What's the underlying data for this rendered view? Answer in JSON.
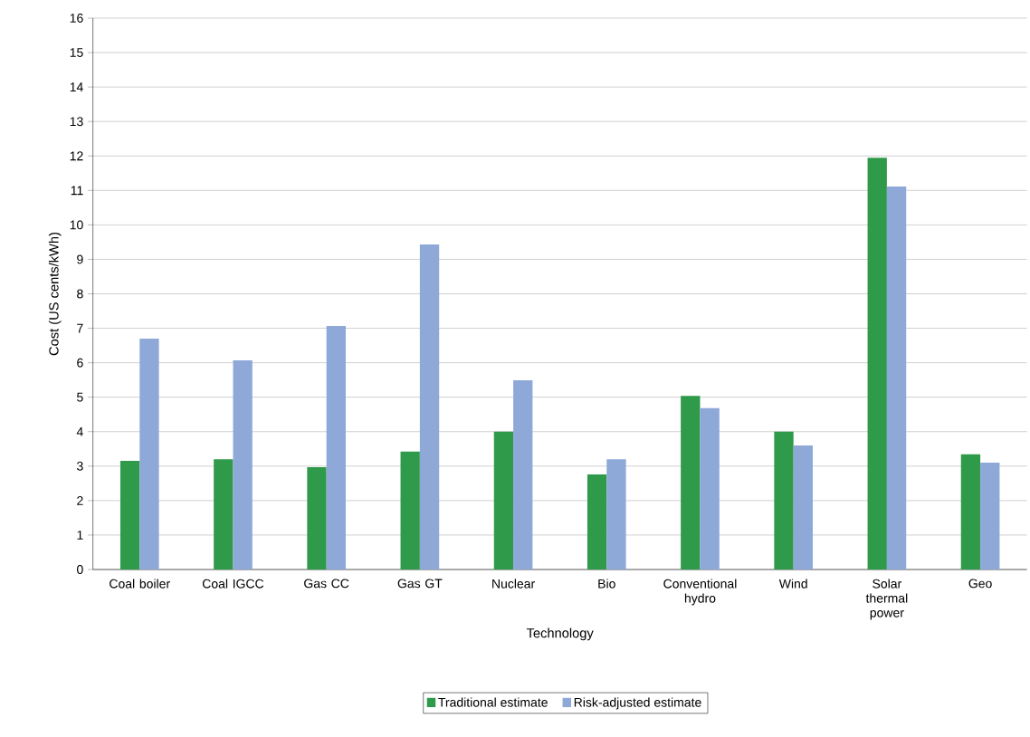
{
  "chart_data": {
    "type": "bar",
    "xlabel": "Technology",
    "ylabel": "Cost (US cents/kWh)",
    "categories": [
      "Coal boiler",
      "Coal IGCC",
      "Gas CC",
      "Gas GT",
      "Nuclear",
      "Bio",
      "Conventional hydro",
      "Wind",
      "Solar thermal power",
      "Geo"
    ],
    "series": [
      {
        "name": "Traditional estimate",
        "color": "#2f9a4a",
        "values": [
          3.15,
          3.2,
          2.97,
          3.42,
          4.0,
          2.76,
          5.04,
          4.0,
          11.95,
          3.34
        ]
      },
      {
        "name": "Risk-adjusted estimate",
        "color": "#8ea9d8",
        "values": [
          6.7,
          6.07,
          7.07,
          9.43,
          5.49,
          3.2,
          4.68,
          3.6,
          11.11,
          3.1
        ]
      }
    ],
    "ylim": [
      0,
      16
    ],
    "yticks": [
      0,
      1,
      2,
      3,
      4,
      5,
      6,
      7,
      8,
      9,
      10,
      11,
      12,
      13,
      14,
      15,
      16
    ],
    "grid": "y",
    "legend": "bottom"
  }
}
